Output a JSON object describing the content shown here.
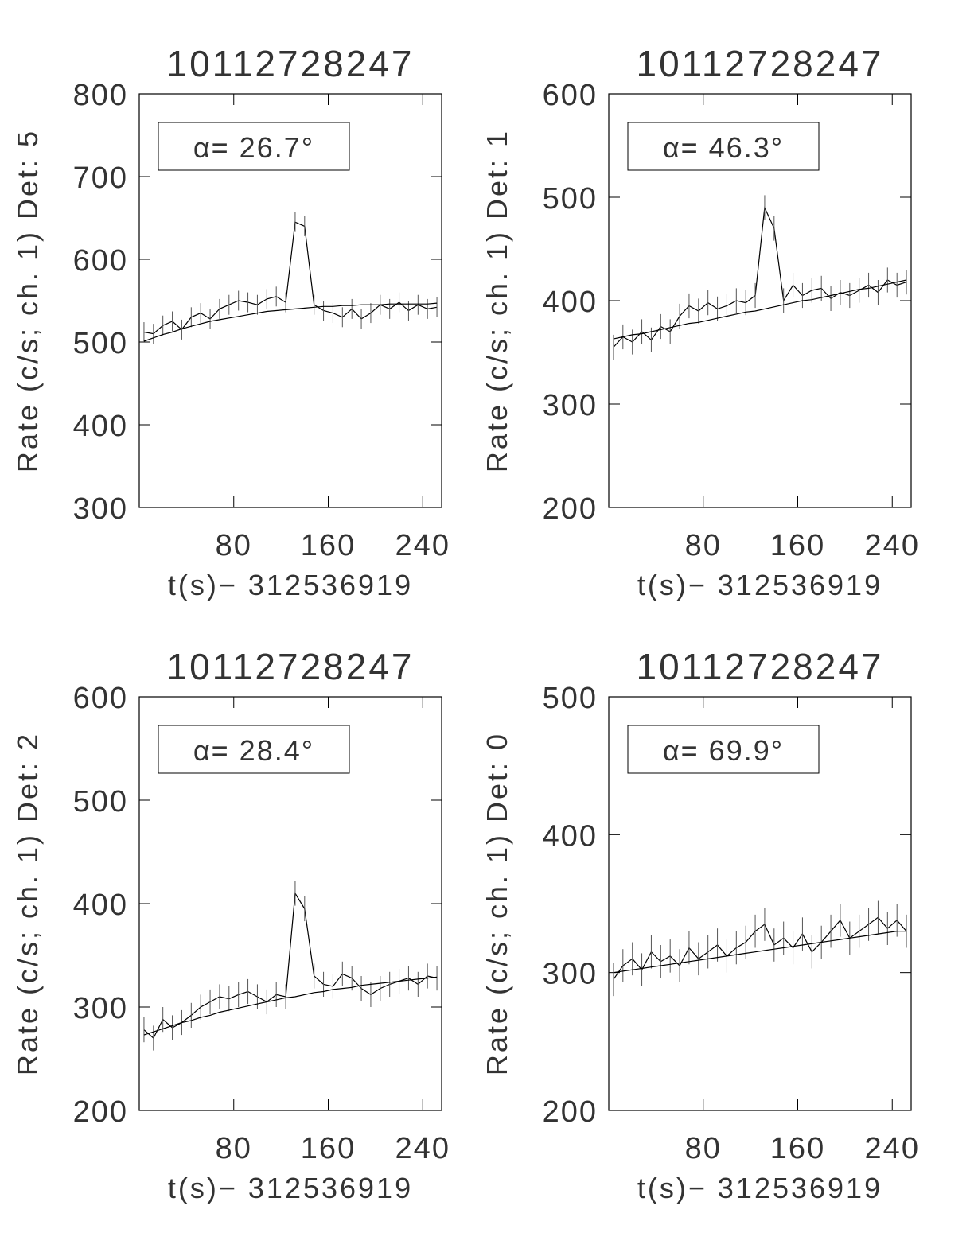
{
  "chart_data": [
    {
      "type": "line",
      "title": "10112728247",
      "xlabel": "t(s)− 312536919",
      "ylabel": "Rate (c/s; ch. 1) Det: 5",
      "annotation": "α= 26.7°",
      "x": [
        4,
        12,
        20,
        28,
        36,
        44,
        52,
        60,
        68,
        76,
        84,
        92,
        100,
        108,
        116,
        124,
        132,
        140,
        148,
        156,
        164,
        172,
        180,
        188,
        196,
        204,
        212,
        220,
        228,
        236,
        244,
        252
      ],
      "xlim": [
        0,
        256
      ],
      "xticks": [
        80,
        160,
        240
      ],
      "ylim": [
        300,
        800
      ],
      "yticks": [
        300,
        400,
        500,
        600,
        700,
        800
      ],
      "series": [
        {
          "color": "#000000",
          "values": [
            512,
            510,
            520,
            525,
            515,
            530,
            535,
            528,
            540,
            545,
            550,
            548,
            545,
            552,
            555,
            548,
            645,
            640,
            545,
            538,
            535,
            530,
            540,
            528,
            535,
            545,
            540,
            548,
            538,
            545,
            540,
            542
          ],
          "errors": [
            12,
            12,
            12,
            12,
            12,
            12,
            12,
            12,
            12,
            12,
            12,
            12,
            12,
            12,
            12,
            12,
            12,
            12,
            12,
            12,
            12,
            12,
            12,
            12,
            12,
            12,
            12,
            12,
            12,
            12,
            12,
            12
          ]
        },
        {
          "color": "#000000",
          "values": [
            501,
            505,
            509,
            512,
            516,
            519,
            522,
            525,
            527,
            529,
            531,
            533,
            535,
            537,
            538,
            539,
            540,
            541,
            542,
            543,
            543,
            544,
            544,
            545,
            545,
            545,
            546,
            546,
            546,
            546,
            546,
            547
          ]
        }
      ]
    },
    {
      "type": "line",
      "title": "10112728247",
      "xlabel": "t(s)− 312536919",
      "ylabel": "Rate (c/s; ch. 1) Det: 1",
      "annotation": "α= 46.3°",
      "x": [
        4,
        12,
        20,
        28,
        36,
        44,
        52,
        60,
        68,
        76,
        84,
        92,
        100,
        108,
        116,
        124,
        132,
        140,
        148,
        156,
        164,
        172,
        180,
        188,
        196,
        204,
        212,
        220,
        228,
        236,
        244,
        252
      ],
      "xlim": [
        0,
        256
      ],
      "xticks": [
        80,
        160,
        240
      ],
      "ylim": [
        200,
        600
      ],
      "yticks": [
        200,
        300,
        400,
        500,
        600
      ],
      "series": [
        {
          "color": "#000000",
          "values": [
            355,
            365,
            360,
            370,
            362,
            375,
            370,
            385,
            395,
            390,
            398,
            392,
            395,
            400,
            398,
            405,
            490,
            470,
            400,
            415,
            405,
            410,
            412,
            402,
            408,
            405,
            410,
            415,
            408,
            420,
            415,
            418
          ],
          "errors": [
            12,
            12,
            12,
            12,
            12,
            12,
            12,
            12,
            12,
            12,
            12,
            12,
            12,
            12,
            12,
            12,
            12,
            12,
            12,
            12,
            12,
            12,
            12,
            12,
            12,
            12,
            12,
            12,
            12,
            12,
            12,
            12
          ]
        },
        {
          "color": "#000000",
          "values": [
            363,
            365,
            367,
            368,
            370,
            372,
            374,
            376,
            378,
            379,
            381,
            383,
            385,
            387,
            389,
            390,
            392,
            394,
            396,
            398,
            400,
            401,
            403,
            405,
            407,
            409,
            411,
            412,
            414,
            416,
            418,
            420
          ]
        }
      ]
    },
    {
      "type": "line",
      "title": "10112728247",
      "xlabel": "t(s)− 312536919",
      "ylabel": "Rate (c/s; ch. 1) Det: 2",
      "annotation": "α= 28.4°",
      "x": [
        4,
        12,
        20,
        28,
        36,
        44,
        52,
        60,
        68,
        76,
        84,
        92,
        100,
        108,
        116,
        124,
        132,
        140,
        148,
        156,
        164,
        172,
        180,
        188,
        196,
        204,
        212,
        220,
        228,
        236,
        244,
        252
      ],
      "xlim": [
        0,
        256
      ],
      "xticks": [
        80,
        160,
        240
      ],
      "ylim": [
        200,
        600
      ],
      "yticks": [
        200,
        300,
        400,
        500,
        600
      ],
      "series": [
        {
          "color": "#000000",
          "values": [
            278,
            270,
            288,
            280,
            285,
            292,
            300,
            305,
            310,
            308,
            312,
            315,
            310,
            305,
            312,
            310,
            410,
            395,
            330,
            322,
            320,
            332,
            328,
            318,
            312,
            318,
            322,
            325,
            328,
            322,
            330,
            328
          ],
          "errors": [
            12,
            12,
            12,
            12,
            12,
            12,
            12,
            12,
            12,
            12,
            12,
            12,
            12,
            12,
            12,
            12,
            12,
            12,
            12,
            12,
            12,
            12,
            12,
            12,
            12,
            12,
            12,
            12,
            12,
            12,
            12,
            12
          ]
        },
        {
          "color": "#000000",
          "values": [
            273,
            276,
            279,
            282,
            285,
            287,
            290,
            292,
            295,
            297,
            299,
            301,
            303,
            305,
            307,
            309,
            310,
            312,
            314,
            315,
            317,
            318,
            319,
            321,
            322,
            323,
            324,
            325,
            326,
            327,
            328,
            329
          ]
        }
      ]
    },
    {
      "type": "line",
      "title": "10112728247",
      "xlabel": "t(s)− 312536919",
      "ylabel": "Rate (c/s; ch. 1) Det: 0",
      "annotation": "α= 69.9°",
      "x": [
        4,
        12,
        20,
        28,
        36,
        44,
        52,
        60,
        68,
        76,
        84,
        92,
        100,
        108,
        116,
        124,
        132,
        140,
        148,
        156,
        164,
        172,
        180,
        188,
        196,
        204,
        212,
        220,
        228,
        236,
        244,
        252
      ],
      "xlim": [
        0,
        256
      ],
      "xticks": [
        80,
        160,
        240
      ],
      "ylim": [
        200,
        500
      ],
      "yticks": [
        200,
        300,
        400,
        500
      ],
      "series": [
        {
          "color": "#000000",
          "values": [
            295,
            305,
            310,
            302,
            315,
            308,
            312,
            305,
            318,
            310,
            315,
            320,
            312,
            318,
            322,
            330,
            335,
            320,
            325,
            318,
            328,
            315,
            322,
            330,
            338,
            325,
            330,
            335,
            340,
            332,
            338,
            330
          ],
          "errors": [
            12,
            12,
            12,
            12,
            12,
            12,
            12,
            12,
            12,
            12,
            12,
            12,
            12,
            12,
            12,
            12,
            12,
            12,
            12,
            12,
            12,
            12,
            12,
            12,
            12,
            12,
            12,
            12,
            12,
            12,
            12,
            12
          ]
        },
        {
          "color": "#000000",
          "values": [
            300,
            301,
            302,
            303,
            304,
            305,
            306,
            307,
            308,
            309,
            310,
            311,
            312,
            313,
            314,
            315,
            316,
            317,
            318,
            319,
            320,
            321,
            322,
            323,
            324,
            325,
            326,
            327,
            328,
            329,
            330,
            330
          ]
        }
      ]
    }
  ]
}
